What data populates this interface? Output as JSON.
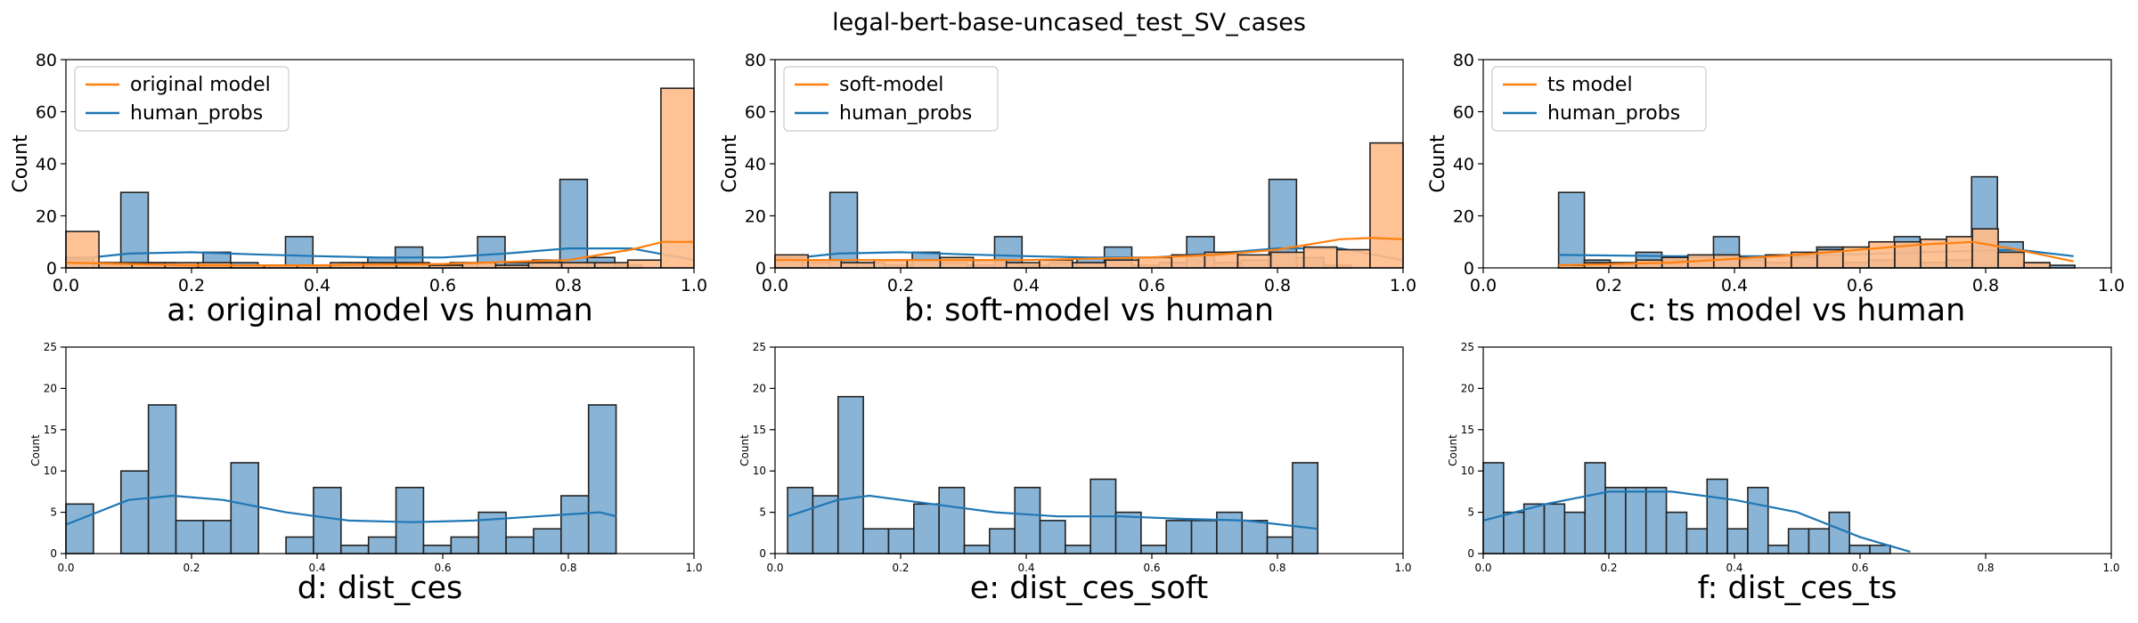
{
  "figure": {
    "suptitle": "legal-bert-base-uncased_test_SV_cases"
  },
  "colors": {
    "human": "#1f77b4",
    "human_fill": "#8ab4d6",
    "model": "#ff7f0e",
    "model_fill": "#ffbb88"
  },
  "chart_data": [
    {
      "type": "bar",
      "panel": "a",
      "title": "a: original model vs human",
      "ylabel": "Count",
      "xlim": [
        0,
        1
      ],
      "ylim": [
        0,
        80
      ],
      "xticks": [
        "0.0",
        "0.2",
        "0.4",
        "0.6",
        "0.8",
        "1.0"
      ],
      "yticks": [
        "0",
        "20",
        "40",
        "60",
        "80"
      ],
      "legend": {
        "position": "top-left",
        "entries": [
          "original model",
          "human_probs"
        ]
      },
      "series": [
        {
          "name": "human_probs",
          "bin_edges": [
            0.0,
            0.0437,
            0.0874,
            0.1311,
            0.1748,
            0.2185,
            0.2622,
            0.3059,
            0.3496,
            0.3933,
            0.437,
            0.4807,
            0.5244,
            0.5681,
            0.6118,
            0.6555,
            0.6992,
            0.7429,
            0.7866,
            0.8303,
            0.874,
            0.9177
          ],
          "counts": [
            4,
            2,
            29,
            2,
            1,
            6,
            2,
            1,
            12,
            1,
            2,
            4,
            8,
            1,
            2,
            12,
            2,
            3,
            34,
            4,
            1
          ],
          "kde": [
            [
              0.0,
              3
            ],
            [
              0.1,
              5.5
            ],
            [
              0.2,
              6
            ],
            [
              0.3,
              5.2
            ],
            [
              0.4,
              4.5
            ],
            [
              0.5,
              4
            ],
            [
              0.6,
              4
            ],
            [
              0.7,
              5.5
            ],
            [
              0.8,
              7.5
            ],
            [
              0.9,
              7.5
            ],
            [
              1.0,
              3
            ]
          ]
        },
        {
          "name": "original model",
          "bin_edges": [
            0.0,
            0.0526,
            0.1053,
            0.1579,
            0.2105,
            0.2632,
            0.3158,
            0.3684,
            0.4211,
            0.4737,
            0.5263,
            0.5789,
            0.6316,
            0.6842,
            0.7368,
            0.7895,
            0.8421,
            0.8947,
            0.9474,
            1.0
          ],
          "counts": [
            14,
            2,
            2,
            2,
            2,
            1,
            1,
            1,
            2,
            2,
            2,
            1,
            2,
            1,
            2,
            2,
            2,
            3,
            69
          ],
          "kde": [
            [
              0.0,
              2
            ],
            [
              0.2,
              1
            ],
            [
              0.4,
              1
            ],
            [
              0.6,
              1.5
            ],
            [
              0.8,
              3
            ],
            [
              0.9,
              7
            ],
            [
              0.95,
              10
            ],
            [
              1.0,
              10
            ]
          ]
        }
      ]
    },
    {
      "type": "bar",
      "panel": "b",
      "title": "b: soft-model vs human",
      "ylabel": "Count",
      "xlim": [
        0,
        1
      ],
      "ylim": [
        0,
        80
      ],
      "xticks": [
        "0.0",
        "0.2",
        "0.4",
        "0.6",
        "0.8",
        "1.0"
      ],
      "yticks": [
        "0",
        "20",
        "40",
        "60",
        "80"
      ],
      "legend": {
        "position": "top-left",
        "entries": [
          "soft-model",
          "human_probs"
        ]
      },
      "series": [
        {
          "name": "human_probs",
          "bin_edges": [
            0.0,
            0.0437,
            0.0874,
            0.1311,
            0.1748,
            0.2185,
            0.2622,
            0.3059,
            0.3496,
            0.3933,
            0.437,
            0.4807,
            0.5244,
            0.5681,
            0.6118,
            0.6555,
            0.6992,
            0.7429,
            0.7866,
            0.8303,
            0.874,
            0.9177
          ],
          "counts": [
            4,
            2,
            29,
            2,
            1,
            6,
            2,
            1,
            12,
            1,
            2,
            4,
            8,
            1,
            2,
            12,
            2,
            3,
            34,
            4,
            1
          ],
          "kde": [
            [
              0.0,
              3
            ],
            [
              0.1,
              5.5
            ],
            [
              0.2,
              6
            ],
            [
              0.3,
              5.2
            ],
            [
              0.4,
              4.5
            ],
            [
              0.5,
              4
            ],
            [
              0.6,
              4
            ],
            [
              0.7,
              5.5
            ],
            [
              0.8,
              7.5
            ],
            [
              0.9,
              7.5
            ],
            [
              1.0,
              3
            ]
          ]
        },
        {
          "name": "soft-model",
          "bin_edges": [
            0.0,
            0.0526,
            0.1053,
            0.1579,
            0.2105,
            0.2632,
            0.3158,
            0.3684,
            0.4211,
            0.4737,
            0.5263,
            0.5789,
            0.6316,
            0.6842,
            0.7368,
            0.7895,
            0.8421,
            0.8947,
            0.9474,
            1.0
          ],
          "counts": [
            5,
            3,
            2,
            3,
            3,
            4,
            3,
            2,
            3,
            2,
            3,
            4,
            5,
            6,
            5,
            6,
            8,
            7,
            48
          ],
          "kde": [
            [
              0.0,
              3
            ],
            [
              0.2,
              3
            ],
            [
              0.4,
              3
            ],
            [
              0.6,
              4
            ],
            [
              0.7,
              5
            ],
            [
              0.8,
              7
            ],
            [
              0.9,
              11
            ],
            [
              0.95,
              11.5
            ],
            [
              1.0,
              11
            ]
          ]
        }
      ]
    },
    {
      "type": "bar",
      "panel": "c",
      "title": "c: ts model vs human",
      "ylabel": "Count",
      "xlim": [
        0,
        1
      ],
      "ylim": [
        0,
        80
      ],
      "xticks": [
        "0.0",
        "0.2",
        "0.4",
        "0.6",
        "0.8",
        "1.0"
      ],
      "yticks": [
        "0",
        "20",
        "40",
        "60",
        "80"
      ],
      "legend": {
        "position": "top-left",
        "entries": [
          "ts model",
          "human_probs"
        ]
      },
      "series": [
        {
          "name": "human_probs",
          "bin_edges": [
            0.12,
            0.1611,
            0.2022,
            0.2433,
            0.2844,
            0.3255,
            0.3666,
            0.4077,
            0.4488,
            0.4899,
            0.531,
            0.5721,
            0.6132,
            0.6543,
            0.6954,
            0.7365,
            0.7776,
            0.8187,
            0.8598,
            0.9009,
            0.942
          ],
          "counts": [
            29,
            3,
            2,
            6,
            3,
            4,
            12,
            3,
            2,
            4,
            8,
            2,
            3,
            12,
            2,
            3,
            35,
            10,
            2,
            1
          ],
          "kde": [
            [
              0.12,
              5
            ],
            [
              0.3,
              4.5
            ],
            [
              0.5,
              4.5
            ],
            [
              0.7,
              6
            ],
            [
              0.85,
              7
            ],
            [
              0.94,
              4.5
            ]
          ]
        },
        {
          "name": "ts model",
          "bin_edges": [
            0.12,
            0.1612,
            0.2024,
            0.2435,
            0.2847,
            0.3259,
            0.3671,
            0.4082,
            0.4494,
            0.4906,
            0.5318,
            0.5729,
            0.6141,
            0.6553,
            0.6965,
            0.7376,
            0.7788,
            0.82,
            0.8612,
            0.9024
          ],
          "counts": [
            1,
            2,
            2,
            3,
            4,
            5,
            5,
            4,
            5,
            6,
            7,
            8,
            10,
            10,
            11,
            12,
            15,
            6,
            2
          ],
          "kde": [
            [
              0.12,
              1
            ],
            [
              0.3,
              2
            ],
            [
              0.5,
              5
            ],
            [
              0.7,
              9
            ],
            [
              0.78,
              10
            ],
            [
              0.85,
              7
            ],
            [
              0.94,
              2.5
            ]
          ]
        }
      ]
    },
    {
      "type": "bar",
      "panel": "d",
      "title": "d: dist_ces",
      "ylabel": "Count",
      "xlim": [
        0,
        1
      ],
      "ylim": [
        0,
        25
      ],
      "xticks": [
        "0.0",
        "0.2",
        "0.4",
        "0.6",
        "0.8",
        "1.0"
      ],
      "yticks": [
        "0",
        "5",
        "10",
        "15",
        "20",
        "25"
      ],
      "series": [
        {
          "name": "dist_ces",
          "bin_edges": [
            0.0,
            0.0438,
            0.0876,
            0.1314,
            0.1752,
            0.219,
            0.2628,
            0.3066,
            0.3504,
            0.3942,
            0.438,
            0.4818,
            0.5256,
            0.5694,
            0.6132,
            0.657,
            0.7008,
            0.7446,
            0.7884,
            0.8322,
            0.876
          ],
          "counts": [
            6,
            0,
            10,
            18,
            4,
            4,
            11,
            0,
            2,
            8,
            1,
            2,
            8,
            1,
            2,
            5,
            2,
            3,
            7,
            18
          ],
          "kde": [
            [
              0.0,
              3.5
            ],
            [
              0.1,
              6.5
            ],
            [
              0.17,
              7
            ],
            [
              0.25,
              6.5
            ],
            [
              0.35,
              5
            ],
            [
              0.45,
              4
            ],
            [
              0.55,
              3.8
            ],
            [
              0.65,
              4
            ],
            [
              0.75,
              4.5
            ],
            [
              0.85,
              5
            ],
            [
              0.876,
              4.5
            ]
          ]
        }
      ]
    },
    {
      "type": "bar",
      "panel": "e",
      "title": "e: dist_ces_soft",
      "ylabel": "Count",
      "xlim": [
        0,
        1
      ],
      "ylim": [
        0,
        25
      ],
      "xticks": [
        "0.0",
        "0.2",
        "0.4",
        "0.6",
        "0.8",
        "1.0"
      ],
      "yticks": [
        "0",
        "5",
        "10",
        "15",
        "20",
        "25"
      ],
      "series": [
        {
          "name": "dist_ces_soft",
          "bin_edges": [
            0.02,
            0.0602,
            0.1004,
            0.1406,
            0.1808,
            0.221,
            0.2612,
            0.3014,
            0.3416,
            0.3818,
            0.422,
            0.4622,
            0.5024,
            0.5426,
            0.5828,
            0.623,
            0.6632,
            0.7034,
            0.7436,
            0.7838,
            0.824,
            0.8642
          ],
          "counts": [
            8,
            7,
            19,
            3,
            3,
            6,
            8,
            1,
            3,
            8,
            4,
            1,
            9,
            5,
            1,
            4,
            4,
            5,
            4,
            2,
            11
          ],
          "kde": [
            [
              0.02,
              4.5
            ],
            [
              0.1,
              6.5
            ],
            [
              0.15,
              7
            ],
            [
              0.25,
              6
            ],
            [
              0.35,
              5
            ],
            [
              0.45,
              4.5
            ],
            [
              0.55,
              4.5
            ],
            [
              0.65,
              4.2
            ],
            [
              0.75,
              4
            ],
            [
              0.864,
              3
            ]
          ]
        }
      ]
    },
    {
      "type": "bar",
      "panel": "f",
      "title": "f: dist_ces_ts",
      "ylabel": "Count",
      "xlim": [
        0,
        1
      ],
      "ylim": [
        0,
        25
      ],
      "xticks": [
        "0.0",
        "0.2",
        "0.4",
        "0.6",
        "0.8",
        "1.0"
      ],
      "yticks": [
        "0",
        "5",
        "10",
        "15",
        "20",
        "25"
      ],
      "series": [
        {
          "name": "dist_ces_ts",
          "bin_edges": [
            0.0,
            0.0324,
            0.0648,
            0.0972,
            0.1296,
            0.162,
            0.1944,
            0.2268,
            0.2592,
            0.2916,
            0.324,
            0.3564,
            0.3888,
            0.4212,
            0.4536,
            0.486,
            0.5184,
            0.5508,
            0.5832,
            0.6156,
            0.648,
            0.6804
          ],
          "counts": [
            11,
            5,
            6,
            6,
            5,
            11,
            8,
            8,
            8,
            5,
            3,
            9,
            3,
            8,
            1,
            3,
            3,
            5,
            1,
            1,
            0
          ],
          "kde": [
            [
              0.0,
              4
            ],
            [
              0.1,
              6
            ],
            [
              0.2,
              7.5
            ],
            [
              0.3,
              7.5
            ],
            [
              0.4,
              6.5
            ],
            [
              0.5,
              5
            ],
            [
              0.6,
              2
            ],
            [
              0.68,
              0.2
            ]
          ]
        }
      ]
    }
  ]
}
